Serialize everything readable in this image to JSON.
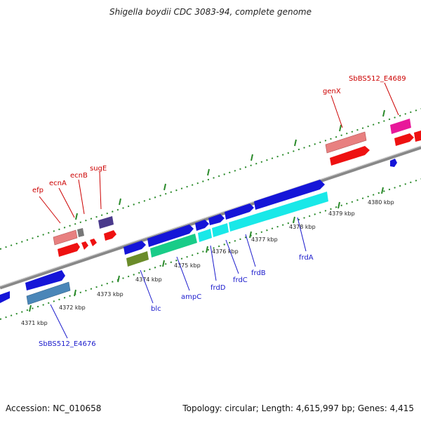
{
  "title": "Shigella boydii CDC 3083-94, complete genome",
  "footer": {
    "accession": "Accession: NC_010658",
    "summary": "Topology: circular; Length: 4,615,997 bp; Genes: 4,415"
  },
  "ticks": [
    {
      "label": "4371 kbp"
    },
    {
      "label": "4372 kbp"
    },
    {
      "label": "4373 kbp"
    },
    {
      "label": "4374 kbp"
    },
    {
      "label": "4375 kbp"
    },
    {
      "label": "4376 kbp"
    },
    {
      "label": "4377 kbp"
    },
    {
      "label": "4378 kbp"
    },
    {
      "label": "4379 kbp"
    },
    {
      "label": "4380 kbp"
    }
  ],
  "forward_labels": [
    "efp",
    "ecnA",
    "ecnB",
    "sugE",
    "genX",
    "SbBS512_E4689"
  ],
  "reverse_labels": [
    "SbBS512_E4676",
    "blc",
    "ampC",
    "frdD",
    "frdC",
    "frdB",
    "frdA"
  ],
  "colors": {
    "backbone": "#888888",
    "tick_green": "#2a8a2a",
    "cds_blue": "#1515d8",
    "cds_red": "#ee1111",
    "gene_pink": "#e88080",
    "gene_cyan": "#19e8e8",
    "gene_green": "#19cc88",
    "gene_olive": "#6b8c2a",
    "gene_steel": "#4a86b8",
    "gene_magenta": "#e8189a",
    "gene_purple": "#4a3a8c",
    "gene_grey": "#777777"
  }
}
